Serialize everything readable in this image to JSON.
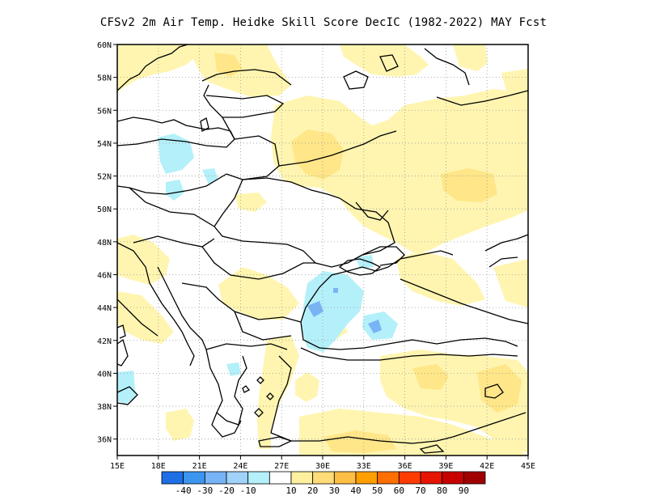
{
  "title": "CFSv2  2m Air Temp. Heidke Skill Score DecIC (1982-2022) MAY Fcst",
  "map": {
    "lon_range": [
      15,
      45
    ],
    "lat_range": [
      35,
      60
    ],
    "lon_ticks": [
      "15E",
      "18E",
      "21E",
      "24E",
      "27E",
      "30E",
      "33E",
      "36E",
      "39E",
      "42E",
      "45E"
    ],
    "lat_ticks": [
      "36N",
      "38N",
      "40N",
      "42N",
      "44N",
      "46N",
      "48N",
      "50N",
      "52N",
      "54N",
      "56N",
      "58N",
      "60N"
    ],
    "gridlines": "dotted"
  },
  "colorbar": {
    "labels": [
      "-40",
      "-30",
      "-20",
      "-10",
      "10",
      "20",
      "30",
      "40",
      "50",
      "60",
      "70",
      "80",
      "90"
    ],
    "colors": [
      "#1e6ee6",
      "#3c96f0",
      "#78b4f5",
      "#a0d2fa",
      "#b4f0fa",
      "#ffffff",
      "#fff0a0",
      "#ffdc78",
      "#ffbe46",
      "#ffa000",
      "#ff6e00",
      "#ff3c00",
      "#e61400",
      "#c80000",
      "#a00000"
    ]
  },
  "legend_colors": {
    "cyan": "#b4f0fa",
    "blue": "#78b4f5",
    "pale_yellow": "#fff5b0",
    "yellow": "#ffe688",
    "ocean": "#ffffff"
  }
}
